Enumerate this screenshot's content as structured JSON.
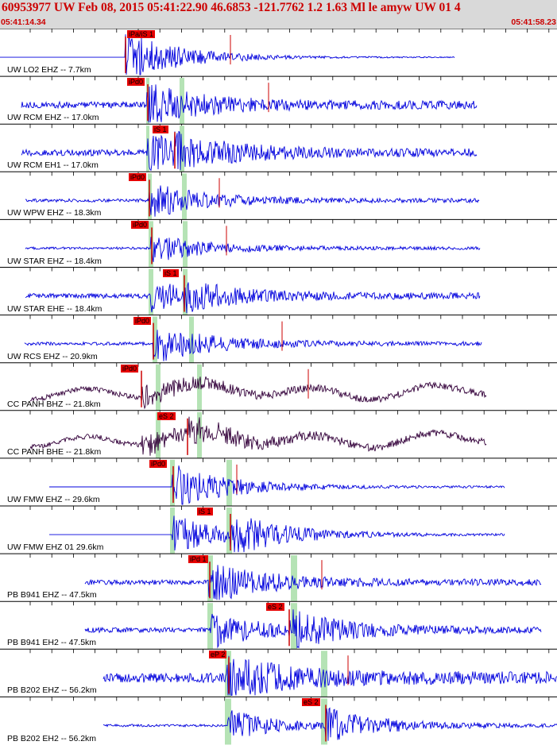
{
  "header": {
    "title": "60953977 UW Feb 08, 2015 05:41:22.90   46.6853 -121.7762  1.2 1.63 Ml le amyw UW 01   4",
    "start_time": "05:41:14.34",
    "end_time": "05:41:58.23"
  },
  "colors": {
    "trace_short_period": "#0000dd",
    "trace_broadband": "#33003a",
    "pick_flag": "#e60000",
    "pick_line": "#cc0000",
    "window_band": "#b5e3b5",
    "header_text": "#cc0000",
    "header_bg": "#d9d9d9"
  },
  "traces": [
    {
      "label": "UW LO2 EHZ -- 7.7km",
      "pick": "iPa/iS 1"
    },
    {
      "label": "UW RCM EHZ -- 17.0km",
      "pick": "iPd0"
    },
    {
      "label": "UW RCM EH1 -- 17.0km",
      "pick": "iS 1"
    },
    {
      "label": "UW WPW EHZ -- 18.3km",
      "pick": "iPd0"
    },
    {
      "label": "UW STAR EHZ -- 18.4km",
      "pick": "iPd0"
    },
    {
      "label": "UW STAR EHE -- 18.4km",
      "pick": "iS 1"
    },
    {
      "label": "UW RCS EHZ -- 20.9km",
      "pick": "iPd0"
    },
    {
      "label": "CC PANH BHZ -- 21.8km",
      "pick": "iPd0"
    },
    {
      "label": "CC PANH BHE -- 21.8km",
      "pick": "eS 2"
    },
    {
      "label": "UW FMW EHZ -- 29.6km",
      "pick": "iPd0"
    },
    {
      "label": "UW FMW EHZ 01 29.6km",
      "pick": "iS 1"
    },
    {
      "label": "PB B941 EHZ -- 47.5km",
      "pick": "iPd 1"
    },
    {
      "label": "PB B941 EH2 -- 47.5km",
      "pick": "eS 2"
    },
    {
      "label": "PB B202 EHZ -- 56.2km",
      "pick": "eP 2"
    },
    {
      "label": "PB B202 EH2 -- 56.2km",
      "pick": "eS 2"
    }
  ]
}
